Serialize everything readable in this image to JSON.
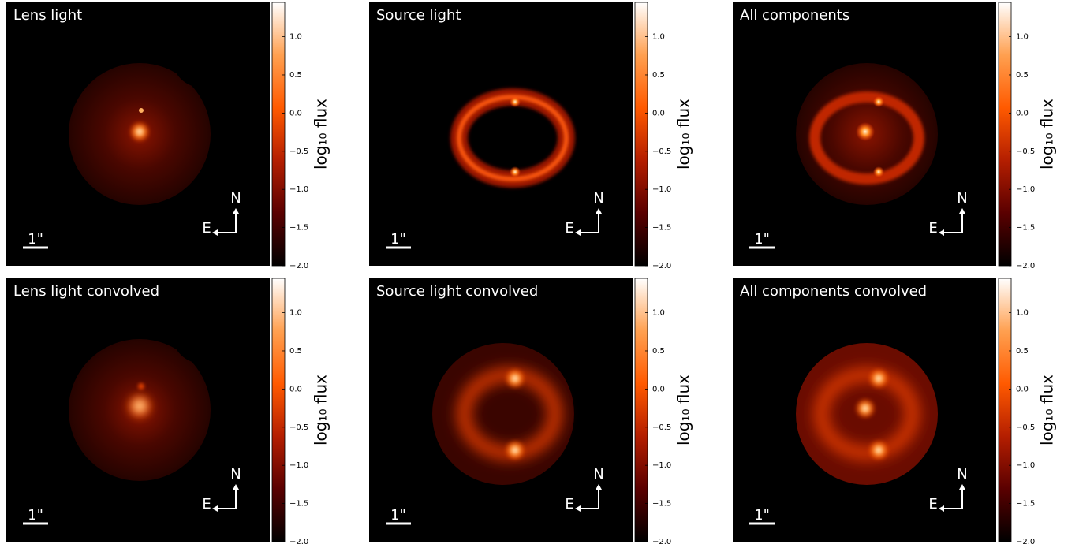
{
  "chart_data": [
    {
      "type": "image",
      "title": "Lens light",
      "scale_bar_label": "1\"",
      "compass": {
        "north": "N",
        "east": "E"
      },
      "colormap": [
        "#000000",
        "#5a0000",
        "#b41e00",
        "#ff5a00",
        "#ffa050",
        "#ffffff"
      ],
      "colorbar": {
        "label": "log₁₀ flux",
        "lim": [
          -2,
          1.45
        ],
        "ticks": [
          {
            "value": -2,
            "label": "−2.0"
          },
          {
            "value": -1.5,
            "label": "−1.5"
          },
          {
            "value": -1,
            "label": "−1.0"
          },
          {
            "value": -0.5,
            "label": "−0.5"
          },
          {
            "value": 0,
            "label": "0.0"
          },
          0.5,
          {
            "value": 1,
            "label": "1.0"
          }
        ]
      }
    },
    {
      "type": "image",
      "title": "Source light",
      "scale_bar_label": "1\"",
      "compass": {
        "north": "N",
        "east": "E"
      },
      "colormap": [
        "#000000",
        "#5a0000",
        "#b41e00",
        "#ff5a00",
        "#ffa050",
        "#ffffff"
      ],
      "colorbar": {
        "label": "log₁₀ flux",
        "lim": [
          -2,
          1.45
        ],
        "ticks": [
          {
            "value": -2,
            "label": "−2.0"
          },
          {
            "value": -1.5,
            "label": "−1.5"
          },
          {
            "value": -1,
            "label": "−1.0"
          },
          {
            "value": -0.5,
            "label": "−0.5"
          },
          {
            "value": 0,
            "label": "0.0"
          },
          0.5,
          {
            "value": 1,
            "label": "1.0"
          }
        ]
      }
    },
    {
      "type": "image",
      "title": "All components",
      "scale_bar_label": "1\"",
      "compass": {
        "north": "N",
        "east": "E"
      },
      "colormap": [
        "#000000",
        "#5a0000",
        "#b41e00",
        "#ff5a00",
        "#ffa050",
        "#ffffff"
      ],
      "colorbar": {
        "label": "log₁₀ flux",
        "lim": [
          -2,
          1.45
        ],
        "ticks": [
          {
            "value": -2,
            "label": "−2.0"
          },
          {
            "value": -1.5,
            "label": "−1.5"
          },
          {
            "value": -1,
            "label": "−1.0"
          },
          {
            "value": -0.5,
            "label": "−0.5"
          },
          {
            "value": 0,
            "label": "0.0"
          },
          0.5,
          {
            "value": 1,
            "label": "1.0"
          }
        ]
      }
    },
    {
      "type": "image",
      "title": "Lens light convolved",
      "scale_bar_label": "1\"",
      "compass": {
        "north": "N",
        "east": "E"
      },
      "colormap": [
        "#000000",
        "#5a0000",
        "#b41e00",
        "#ff5a00",
        "#ffa050",
        "#ffffff"
      ],
      "colorbar": {
        "label": "log₁₀ flux",
        "lim": [
          -2,
          1.45
        ],
        "ticks": [
          {
            "value": -2,
            "label": "−2.0"
          },
          {
            "value": -1.5,
            "label": "−1.5"
          },
          {
            "value": -1,
            "label": "−1.0"
          },
          {
            "value": -0.5,
            "label": "−0.5"
          },
          {
            "value": 0,
            "label": "0.0"
          },
          0.5,
          {
            "value": 1,
            "label": "1.0"
          }
        ]
      }
    },
    {
      "type": "image",
      "title": "Source light convolved",
      "scale_bar_label": "1\"",
      "compass": {
        "north": "N",
        "east": "E"
      },
      "colormap": [
        "#000000",
        "#5a0000",
        "#b41e00",
        "#ff5a00",
        "#ffa050",
        "#ffffff"
      ],
      "colorbar": {
        "label": "log₁₀ flux",
        "lim": [
          -2,
          1.45
        ],
        "ticks": [
          {
            "value": -2,
            "label": "−2.0"
          },
          {
            "value": -1.5,
            "label": "−1.5"
          },
          {
            "value": -1,
            "label": "−1.0"
          },
          {
            "value": -0.5,
            "label": "−0.5"
          },
          {
            "value": 0,
            "label": "0.0"
          },
          0.5,
          {
            "value": 1,
            "label": "1.0"
          }
        ]
      }
    },
    {
      "type": "image",
      "title": "All components convolved",
      "scale_bar_label": "1\"",
      "compass": {
        "north": "N",
        "east": "E"
      },
      "colormap": [
        "#000000",
        "#5a0000",
        "#b41e00",
        "#ff5a00",
        "#ffa050",
        "#ffffff"
      ],
      "colorbar": {
        "label": "log₁₀ flux",
        "lim": [
          -2,
          1.45
        ],
        "ticks": [
          {
            "value": -2,
            "label": "−2.0"
          },
          {
            "value": -1.5,
            "label": "−1.5"
          },
          {
            "value": -1,
            "label": "−1.0"
          },
          {
            "value": -0.5,
            "label": "−0.5"
          },
          {
            "value": 0,
            "label": "0.0"
          },
          0.5,
          {
            "value": 1,
            "label": "1.0"
          }
        ]
      }
    }
  ]
}
